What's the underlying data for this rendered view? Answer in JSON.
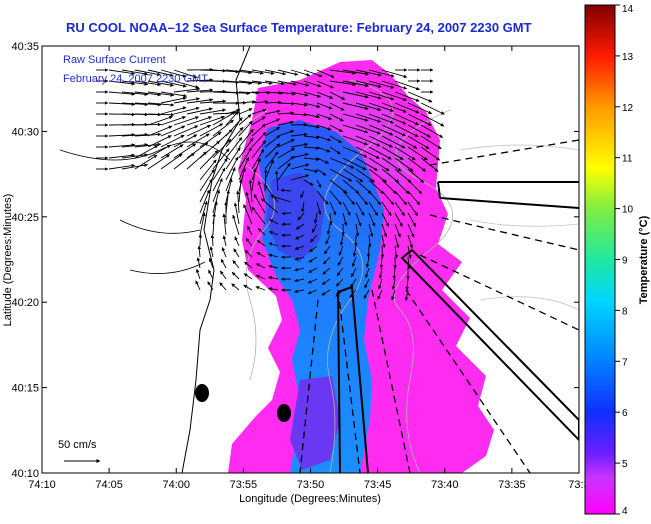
{
  "chart_data": {
    "type": "heatmap",
    "title": "RU COOL  NOAA–12  Sea Surface Temperature:  February 24, 2007 2230 GMT",
    "xlabel": "Longitude (Degrees:Minutes)",
    "ylabel": "Latitude (Degrees:Minutes)",
    "x_ticks": [
      "74:10",
      "74:05",
      "74:00",
      "73:55",
      "73:50",
      "73:45",
      "73:40",
      "73:35",
      "73:3"
    ],
    "y_ticks": [
      "40:35",
      "40:30",
      "40:25",
      "40:20",
      "40:15",
      "40:10"
    ],
    "xlim": [
      "74:10",
      "73:30"
    ],
    "ylim": [
      "40:10",
      "40:35"
    ],
    "legend": {
      "line1": "Raw Surface Current",
      "line2": "February 24, 2007 2230 GMT",
      "color": "#1f2fd0"
    },
    "scale_label": "50 cm/s",
    "colorbar": {
      "label": "Temperature (°C)",
      "ticks": [
        "4",
        "5",
        "6",
        "7",
        "8",
        "9",
        "10",
        "11",
        "12",
        "13",
        "14"
      ],
      "range": [
        4,
        14
      ]
    },
    "colors": {
      "title": "#1a2ad6",
      "warm_water": "#ff2bf0",
      "cold_water": "#1e6fff",
      "land": "#ffffff",
      "vectors": "#000000"
    }
  }
}
